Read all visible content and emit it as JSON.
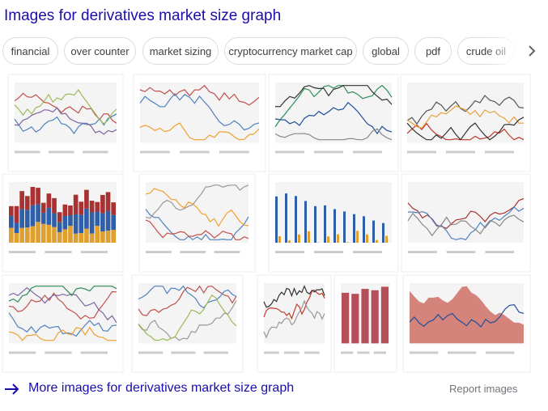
{
  "header": {
    "title": "Images for derivatives market size graph"
  },
  "chips": [
    "financial",
    "over counter",
    "market sizing",
    "cryptocurrency market cap",
    "global",
    "pdf",
    "crude oil"
  ],
  "footer": {
    "more": "More images for derivatives market size graph",
    "report": "Report images"
  }
}
